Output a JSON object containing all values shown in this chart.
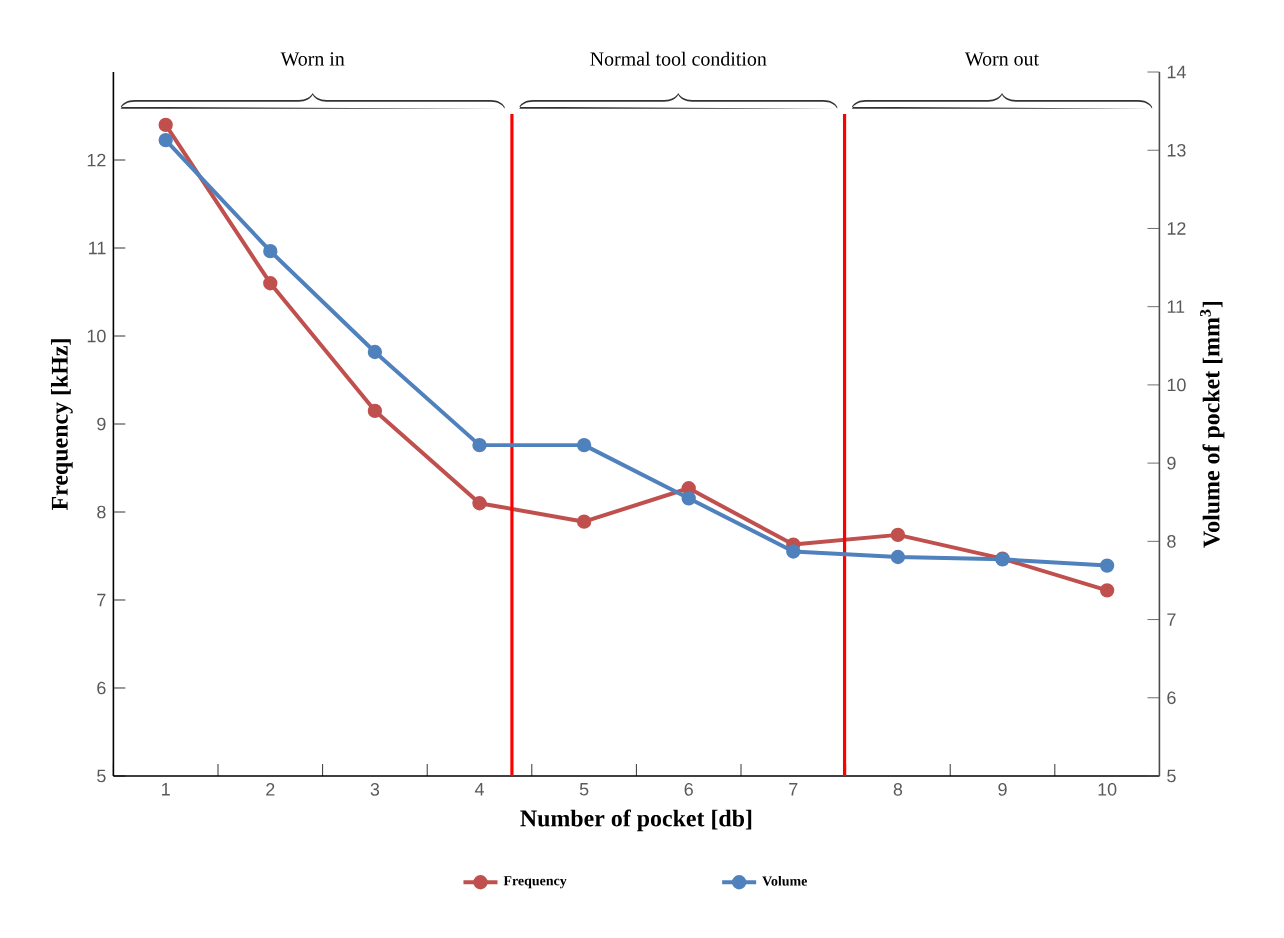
{
  "chart_data": {
    "type": "line",
    "xlabel": "Number of pocket [db]",
    "ylabel": "Frequency [kHz]",
    "y2label": "Volume of pocket [mm$^{3}$]",
    "x": [
      1,
      2,
      3,
      4,
      5,
      6,
      7,
      8,
      9,
      10
    ],
    "xlim": [
      0.5,
      10.5
    ],
    "xticks": [
      1,
      2,
      3,
      4,
      5,
      6,
      7,
      8,
      9,
      10
    ],
    "ylim": [
      5,
      13
    ],
    "yticks": [
      5,
      6,
      7,
      8,
      9,
      10,
      11,
      12
    ],
    "y2lim": [
      5,
      14
    ],
    "y2ticks": [
      5,
      6,
      7,
      8,
      9,
      10,
      11,
      12,
      13,
      14
    ],
    "series": [
      {
        "name": "Frequency",
        "color": "#c0504d",
        "values": [
          12.4,
          10.6,
          9.15,
          8.1,
          7.89,
          8.27,
          7.63,
          7.74,
          7.47,
          7.11
        ]
      },
      {
        "name": "Volume",
        "color": "#4f81bd",
        "axis": "y2",
        "values": [
          13.13,
          11.71,
          10.42,
          9.23,
          9.23,
          8.55,
          7.87,
          7.8,
          7.77,
          7.69
        ]
      }
    ],
    "ref_lines": [
      {
        "axis": "x",
        "value": 4.31,
        "color": "#ff0000"
      },
      {
        "axis": "x",
        "value": 7.49,
        "color": "#ff0000"
      }
    ],
    "annotations": [
      "Worn in",
      "Normal tool condition",
      "Worn out"
    ],
    "marker": "circle",
    "line_style": "solid",
    "grid": false,
    "legend": "bottom"
  }
}
